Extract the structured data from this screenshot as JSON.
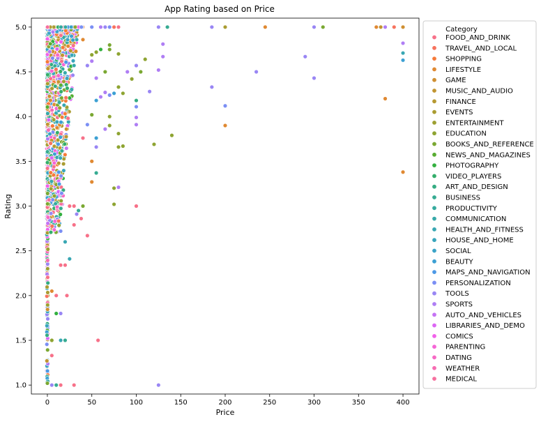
{
  "chart_data": {
    "type": "scatter",
    "title": "App Rating based on Price",
    "xlabel": "Price",
    "ylabel": "Rating",
    "xlim": [
      -18,
      418
    ],
    "ylim": [
      0.9,
      5.1
    ],
    "x_ticks": [
      "0",
      "50",
      "100",
      "150",
      "200",
      "250",
      "300",
      "350",
      "400"
    ],
    "x_tick_values": [
      0,
      50,
      100,
      150,
      200,
      250,
      300,
      350,
      400
    ],
    "y_ticks": [
      "1.0",
      "1.5",
      "2.0",
      "2.5",
      "3.0",
      "3.5",
      "4.0",
      "4.5",
      "5.0"
    ],
    "y_tick_values": [
      1.0,
      1.5,
      2.0,
      2.5,
      3.0,
      3.5,
      4.0,
      4.5,
      5.0
    ],
    "grid": false,
    "legend": {
      "title": "Category",
      "placement": "outside-right",
      "entries": [
        {
          "name": "FOOD_AND_DRINK",
          "color": "#f77189"
        },
        {
          "name": "TRAVEL_AND_LOCAL",
          "color": "#f7735e"
        },
        {
          "name": "SHOPPING",
          "color": "#f67a39"
        },
        {
          "name": "LIFESTYLE",
          "color": "#e08932"
        },
        {
          "name": "GAME",
          "color": "#cf8f32"
        },
        {
          "name": "MUSIC_AND_AUDIO",
          "color": "#c19532"
        },
        {
          "name": "FINANCE",
          "color": "#b69932"
        },
        {
          "name": "EVENTS",
          "color": "#aa9c32"
        },
        {
          "name": "ENTERTAINMENT",
          "color": "#9da032"
        },
        {
          "name": "EDUCATION",
          "color": "#8ea432"
        },
        {
          "name": "BOOKS_AND_REFERENCE",
          "color": "#7aa832"
        },
        {
          "name": "NEWS_AND_MAGAZINES",
          "color": "#58ad32"
        },
        {
          "name": "PHOTOGRAPHY",
          "color": "#33b040"
        },
        {
          "name": "VIDEO_PLAYERS",
          "color": "#34ae6b"
        },
        {
          "name": "ART_AND_DESIGN",
          "color": "#35ac82"
        },
        {
          "name": "BUSINESS",
          "color": "#36ab92"
        },
        {
          "name": "PRODUCTIVITY",
          "color": "#36aa9e"
        },
        {
          "name": "COMMUNICATION",
          "color": "#37a9a9"
        },
        {
          "name": "HEALTH_AND_FITNESS",
          "color": "#38a7b3"
        },
        {
          "name": "HOUSE_AND_HOME",
          "color": "#39a5bc"
        },
        {
          "name": "SOCIAL",
          "color": "#3aa3c7"
        },
        {
          "name": "BEAUTY",
          "color": "#3ca0d3"
        },
        {
          "name": "MAPS_AND_NAVIGATION",
          "color": "#4d99e6"
        },
        {
          "name": "PERSONALIZATION",
          "color": "#7b8ff4"
        },
        {
          "name": "TOOLS",
          "color": "#9986f4"
        },
        {
          "name": "SPORTS",
          "color": "#af7ef4"
        },
        {
          "name": "AUTO_AND_VEHICLES",
          "color": "#c573f4"
        },
        {
          "name": "LIBRARIES_AND_DEMO",
          "color": "#dc66f4"
        },
        {
          "name": "COMICS",
          "color": "#f161ea"
        },
        {
          "name": "PARENTING",
          "color": "#f566d6"
        },
        {
          "name": "DATING",
          "color": "#f669c4"
        },
        {
          "name": "WEATHER",
          "color": "#f66db2"
        },
        {
          "name": "MEDICAL",
          "color": "#f6709f"
        }
      ]
    },
    "outliers": [
      {
        "x": 399.99,
        "y": 5.0,
        "category": "GAME"
      },
      {
        "x": 389.99,
        "y": 5.0,
        "category": "TRAVEL_AND_LOCAL"
      },
      {
        "x": 379.99,
        "y": 5.0,
        "category": "SPORTS"
      },
      {
        "x": 374.99,
        "y": 5.0,
        "category": "MUSIC_AND_AUDIO"
      },
      {
        "x": 369.99,
        "y": 5.0,
        "category": "LIFESTYLE"
      },
      {
        "x": 309.99,
        "y": 5.0,
        "category": "BOOKS_AND_REFERENCE"
      },
      {
        "x": 299.99,
        "y": 5.0,
        "category": "TOOLS"
      },
      {
        "x": 244.99,
        "y": 5.0,
        "category": "LIFESTYLE"
      },
      {
        "x": 199.99,
        "y": 5.0,
        "category": "EVENTS"
      },
      {
        "x": 184.99,
        "y": 5.0,
        "category": "TOOLS"
      },
      {
        "x": 134.99,
        "y": 5.0,
        "category": "BUSINESS"
      },
      {
        "x": 124.99,
        "y": 5.0,
        "category": "TOOLS"
      },
      {
        "x": 79.99,
        "y": 5.0,
        "category": "FOOD_AND_DRINK"
      },
      {
        "x": 74.99,
        "y": 5.0,
        "category": "TRAVEL_AND_LOCAL"
      },
      {
        "x": 69.99,
        "y": 5.0,
        "category": "PERSONALIZATION"
      },
      {
        "x": 64.99,
        "y": 5.0,
        "category": "TOOLS"
      },
      {
        "x": 59.99,
        "y": 5.0,
        "category": "SPORTS"
      },
      {
        "x": 49.99,
        "y": 5.0,
        "category": "PERSONALIZATION"
      },
      {
        "x": 399.99,
        "y": 4.82,
        "category": "SPORTS"
      },
      {
        "x": 399.99,
        "y": 4.71,
        "category": "HEALTH_AND_FITNESS"
      },
      {
        "x": 399.99,
        "y": 4.63,
        "category": "BEAUTY"
      },
      {
        "x": 399.99,
        "y": 3.38,
        "category": "LIFESTYLE"
      },
      {
        "x": 379.99,
        "y": 4.2,
        "category": "LIFESTYLE"
      },
      {
        "x": 299.99,
        "y": 4.43,
        "category": "TOOLS"
      },
      {
        "x": 289.99,
        "y": 4.67,
        "category": "TOOLS"
      },
      {
        "x": 234.99,
        "y": 4.5,
        "category": "TOOLS"
      },
      {
        "x": 199.99,
        "y": 4.12,
        "category": "PERSONALIZATION"
      },
      {
        "x": 199.99,
        "y": 3.9,
        "category": "LIFESTYLE"
      },
      {
        "x": 184.99,
        "y": 4.33,
        "category": "TOOLS"
      },
      {
        "x": 139.99,
        "y": 3.79,
        "category": "EDUCATION"
      },
      {
        "x": 129.99,
        "y": 4.81,
        "category": "SPORTS"
      },
      {
        "x": 129.99,
        "y": 4.67,
        "category": "SPORTS"
      },
      {
        "x": 124.99,
        "y": 4.52,
        "category": "SPORTS"
      },
      {
        "x": 124.99,
        "y": 1.0,
        "category": "TOOLS"
      },
      {
        "x": 119.99,
        "y": 3.69,
        "category": "EDUCATION"
      },
      {
        "x": 114.99,
        "y": 4.28,
        "category": "TOOLS"
      },
      {
        "x": 109.99,
        "y": 4.64,
        "category": "EDUCATION"
      },
      {
        "x": 104.99,
        "y": 4.5,
        "category": "BOOKS_AND_REFERENCE"
      },
      {
        "x": 99.99,
        "y": 4.57,
        "category": "TOOLS"
      },
      {
        "x": 99.99,
        "y": 4.18,
        "category": "ART_AND_DESIGN"
      },
      {
        "x": 99.99,
        "y": 4.11,
        "category": "PERSONALIZATION"
      },
      {
        "x": 99.99,
        "y": 3.99,
        "category": "SPORTS"
      },
      {
        "x": 99.99,
        "y": 3.91,
        "category": "SPORTS"
      },
      {
        "x": 99.99,
        "y": 3.0,
        "category": "FOOD_AND_DRINK"
      },
      {
        "x": 94.99,
        "y": 4.42,
        "category": "EDUCATION"
      },
      {
        "x": 89.99,
        "y": 4.5,
        "category": "SPORTS"
      },
      {
        "x": 84.99,
        "y": 4.26,
        "category": "EDUCATION"
      },
      {
        "x": 84.99,
        "y": 3.67,
        "category": "EDUCATION"
      },
      {
        "x": 79.99,
        "y": 4.7,
        "category": "EDUCATION"
      },
      {
        "x": 79.99,
        "y": 4.33,
        "category": "EDUCATION"
      },
      {
        "x": 79.99,
        "y": 3.81,
        "category": "EDUCATION"
      },
      {
        "x": 79.99,
        "y": 3.66,
        "category": "EDUCATION"
      },
      {
        "x": 79.99,
        "y": 3.21,
        "category": "SPORTS"
      },
      {
        "x": 74.99,
        "y": 4.26,
        "category": "BEAUTY"
      },
      {
        "x": 74.99,
        "y": 3.2,
        "category": "EDUCATION"
      },
      {
        "x": 74.99,
        "y": 3.02,
        "category": "EDUCATION"
      },
      {
        "x": 69.99,
        "y": 4.8,
        "category": "BOOKS_AND_REFERENCE"
      },
      {
        "x": 69.99,
        "y": 4.75,
        "category": "BOOKS_AND_REFERENCE"
      },
      {
        "x": 69.99,
        "y": 4.24,
        "category": "PERSONALIZATION"
      },
      {
        "x": 69.99,
        "y": 4.0,
        "category": "EDUCATION"
      },
      {
        "x": 69.99,
        "y": 3.9,
        "category": "EDUCATION"
      },
      {
        "x": 64.99,
        "y": 4.5,
        "category": "BOOKS_AND_REFERENCE"
      },
      {
        "x": 64.99,
        "y": 4.27,
        "category": "SPORTS"
      },
      {
        "x": 64.99,
        "y": 3.86,
        "category": "SPORTS"
      },
      {
        "x": 59.99,
        "y": 4.75,
        "category": "PHOTOGRAPHY"
      },
      {
        "x": 59.99,
        "y": 4.22,
        "category": "SPORTS"
      },
      {
        "x": 56.99,
        "y": 1.5,
        "category": "FOOD_AND_DRINK"
      },
      {
        "x": 54.99,
        "y": 4.72,
        "category": "EDUCATION"
      },
      {
        "x": 54.99,
        "y": 4.43,
        "category": "SPORTS"
      },
      {
        "x": 54.99,
        "y": 4.18,
        "category": "BEAUTY"
      },
      {
        "x": 54.99,
        "y": 3.76,
        "category": "BEAUTY"
      },
      {
        "x": 54.99,
        "y": 3.66,
        "category": "TOOLS"
      },
      {
        "x": 54.99,
        "y": 3.37,
        "category": "BUSINESS"
      },
      {
        "x": 49.99,
        "y": 4.69,
        "category": "EDUCATION"
      },
      {
        "x": 49.99,
        "y": 4.62,
        "category": "SPORTS"
      },
      {
        "x": 49.99,
        "y": 4.02,
        "category": "BOOKS_AND_REFERENCE"
      },
      {
        "x": 49.99,
        "y": 3.5,
        "category": "LIFESTYLE"
      },
      {
        "x": 49.99,
        "y": 3.27,
        "category": "LIFESTYLE"
      },
      {
        "x": 44.99,
        "y": 4.57,
        "category": "TOOLS"
      },
      {
        "x": 44.99,
        "y": 3.91,
        "category": "PERSONALIZATION"
      },
      {
        "x": 44.99,
        "y": 2.67,
        "category": "FOOD_AND_DRINK"
      },
      {
        "x": 39.99,
        "y": 4.86,
        "category": "LIFESTYLE"
      },
      {
        "x": 39.99,
        "y": 3.76,
        "category": "FOOD_AND_DRINK"
      },
      {
        "x": 39.99,
        "y": 3.0,
        "category": "BOOKS_AND_REFERENCE"
      },
      {
        "x": 37.99,
        "y": 2.86,
        "category": "FOOD_AND_DRINK"
      },
      {
        "x": 34.99,
        "y": 2.95,
        "category": "BUSINESS"
      },
      {
        "x": 32.99,
        "y": 2.91,
        "category": "TOOLS"
      },
      {
        "x": 29.99,
        "y": 1.0,
        "category": "FOOD_AND_DRINK"
      },
      {
        "x": 29.99,
        "y": 2.79,
        "category": "FOOD_AND_DRINK"
      },
      {
        "x": 24.99,
        "y": 2.41,
        "category": "HEALTH_AND_FITNESS"
      },
      {
        "x": 21.99,
        "y": 2.0,
        "category": "FOOD_AND_DRINK"
      },
      {
        "x": 19.99,
        "y": 1.5,
        "category": "BUSINESS"
      },
      {
        "x": 14.99,
        "y": 1.5,
        "category": "HEALTH_AND_FITNESS"
      },
      {
        "x": 14.99,
        "y": 1.8,
        "category": "TOOLS"
      },
      {
        "x": 9.99,
        "y": 1.8,
        "category": "PHOTOGRAPHY"
      },
      {
        "x": 14.99,
        "y": 1.0,
        "category": "FOOD_AND_DRINK"
      },
      {
        "x": 9.99,
        "y": 1.0,
        "category": "BUSINESS"
      },
      {
        "x": 4.99,
        "y": 1.0,
        "category": "TOOLS"
      },
      {
        "x": 29.99,
        "y": 3.0,
        "category": "FOOD_AND_DRINK"
      },
      {
        "x": 24.99,
        "y": 3.0,
        "category": "FOOD_AND_DRINK"
      },
      {
        "x": 19.99,
        "y": 2.34,
        "category": "FOOD_AND_DRINK"
      },
      {
        "x": 19.99,
        "y": 2.6,
        "category": "HEALTH_AND_FITNESS"
      },
      {
        "x": 14.99,
        "y": 2.34,
        "category": "FOOD_AND_DRINK"
      },
      {
        "x": 14.99,
        "y": 2.72,
        "category": "PERSONALIZATION"
      },
      {
        "x": 9.99,
        "y": 2.0,
        "category": "FOOD_AND_DRINK"
      },
      {
        "x": 4.99,
        "y": 1.5,
        "category": "EDUCATION"
      },
      {
        "x": 4.99,
        "y": 1.33,
        "category": "FOOD_AND_DRINK"
      },
      {
        "x": 4.99,
        "y": 2.05,
        "category": "LIFESTYLE"
      }
    ]
  }
}
